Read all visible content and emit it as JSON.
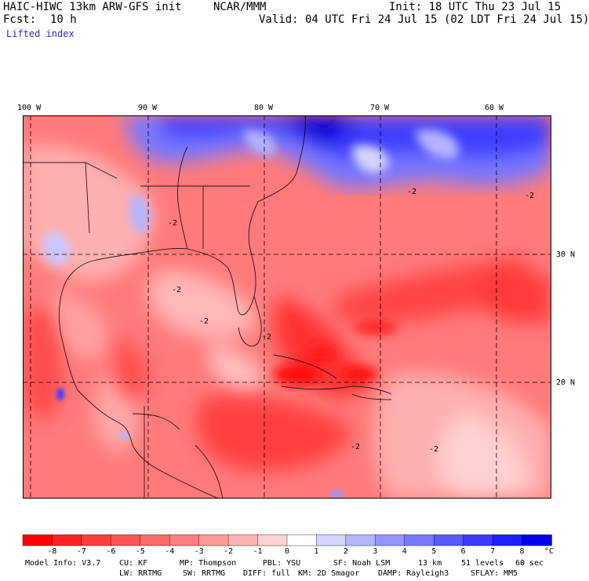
{
  "header": {
    "model": "HAIC-HIWC 13km ARW-GFS init",
    "center": "NCAR/MMM",
    "init": "Init: 18 UTC Thu 23 Jul 15",
    "fcst_label": "Fcst:",
    "fcst_value": "10 h",
    "valid": "Valid: 04 UTC Fri 24 Jul 15 (02 LDT Fri 24 Jul 15)",
    "field": "Lifted index"
  },
  "map": {
    "lon_labels": [
      "100 W",
      "90 W",
      "80 W",
      "70 W",
      "60 W"
    ],
    "lat_labels": [
      "30 N",
      "20 N"
    ],
    "contour_label": "-2"
  },
  "colorbar": {
    "labels": [
      "-8",
      "-7",
      "-6",
      "-5",
      "-4",
      "-3",
      "-2",
      "-1",
      "0",
      "1",
      "2",
      "3",
      "4",
      "5",
      "6",
      "7",
      "8"
    ],
    "unit": "°C",
    "colors": [
      "#ff0000",
      "#ff2424",
      "#ff3c3c",
      "#ff5454",
      "#ff6a6a",
      "#ff8080",
      "#ff9a9a",
      "#ffb4b4",
      "#ffd2d2",
      "#ffffff",
      "#d4d4ff",
      "#b4b4ff",
      "#9494ff",
      "#7878ff",
      "#5a5aff",
      "#3c3cff",
      "#1e1eff",
      "#0000ee"
    ]
  },
  "footer": {
    "line1": [
      "Model Info: V3.7",
      "CU: KF",
      "MP: Thompson",
      "PBL: YSU",
      "SF: Noah LSM",
      "13 km",
      "51 levels",
      "60 sec"
    ],
    "line2": [
      "LW: RRTMG",
      "SW: RRTMG",
      "DIFF: full",
      "KM: 2D Smagor",
      "DAMP: Rayleigh3",
      "SFLAY: MM5"
    ]
  }
}
